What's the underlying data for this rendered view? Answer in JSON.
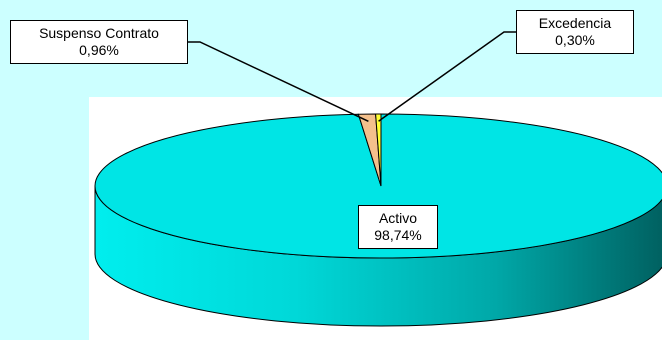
{
  "chart_data": {
    "type": "pie",
    "style": "3d",
    "legend": "none",
    "slices": [
      {
        "label": "Activo",
        "value_text": "98,74%",
        "value": 98.74,
        "color": "#00e5e5"
      },
      {
        "label": "Suspenso Contrato",
        "value_text": "0,96%",
        "value": 0.96,
        "color": "#f4c08c"
      },
      {
        "label": "Excedencia",
        "value_text": "0,30%",
        "value": 0.3,
        "color": "#ffff33"
      }
    ]
  },
  "colors": {
    "background": "#ccffff",
    "plot_area": "#ffffff",
    "side_dark": "#007070"
  }
}
